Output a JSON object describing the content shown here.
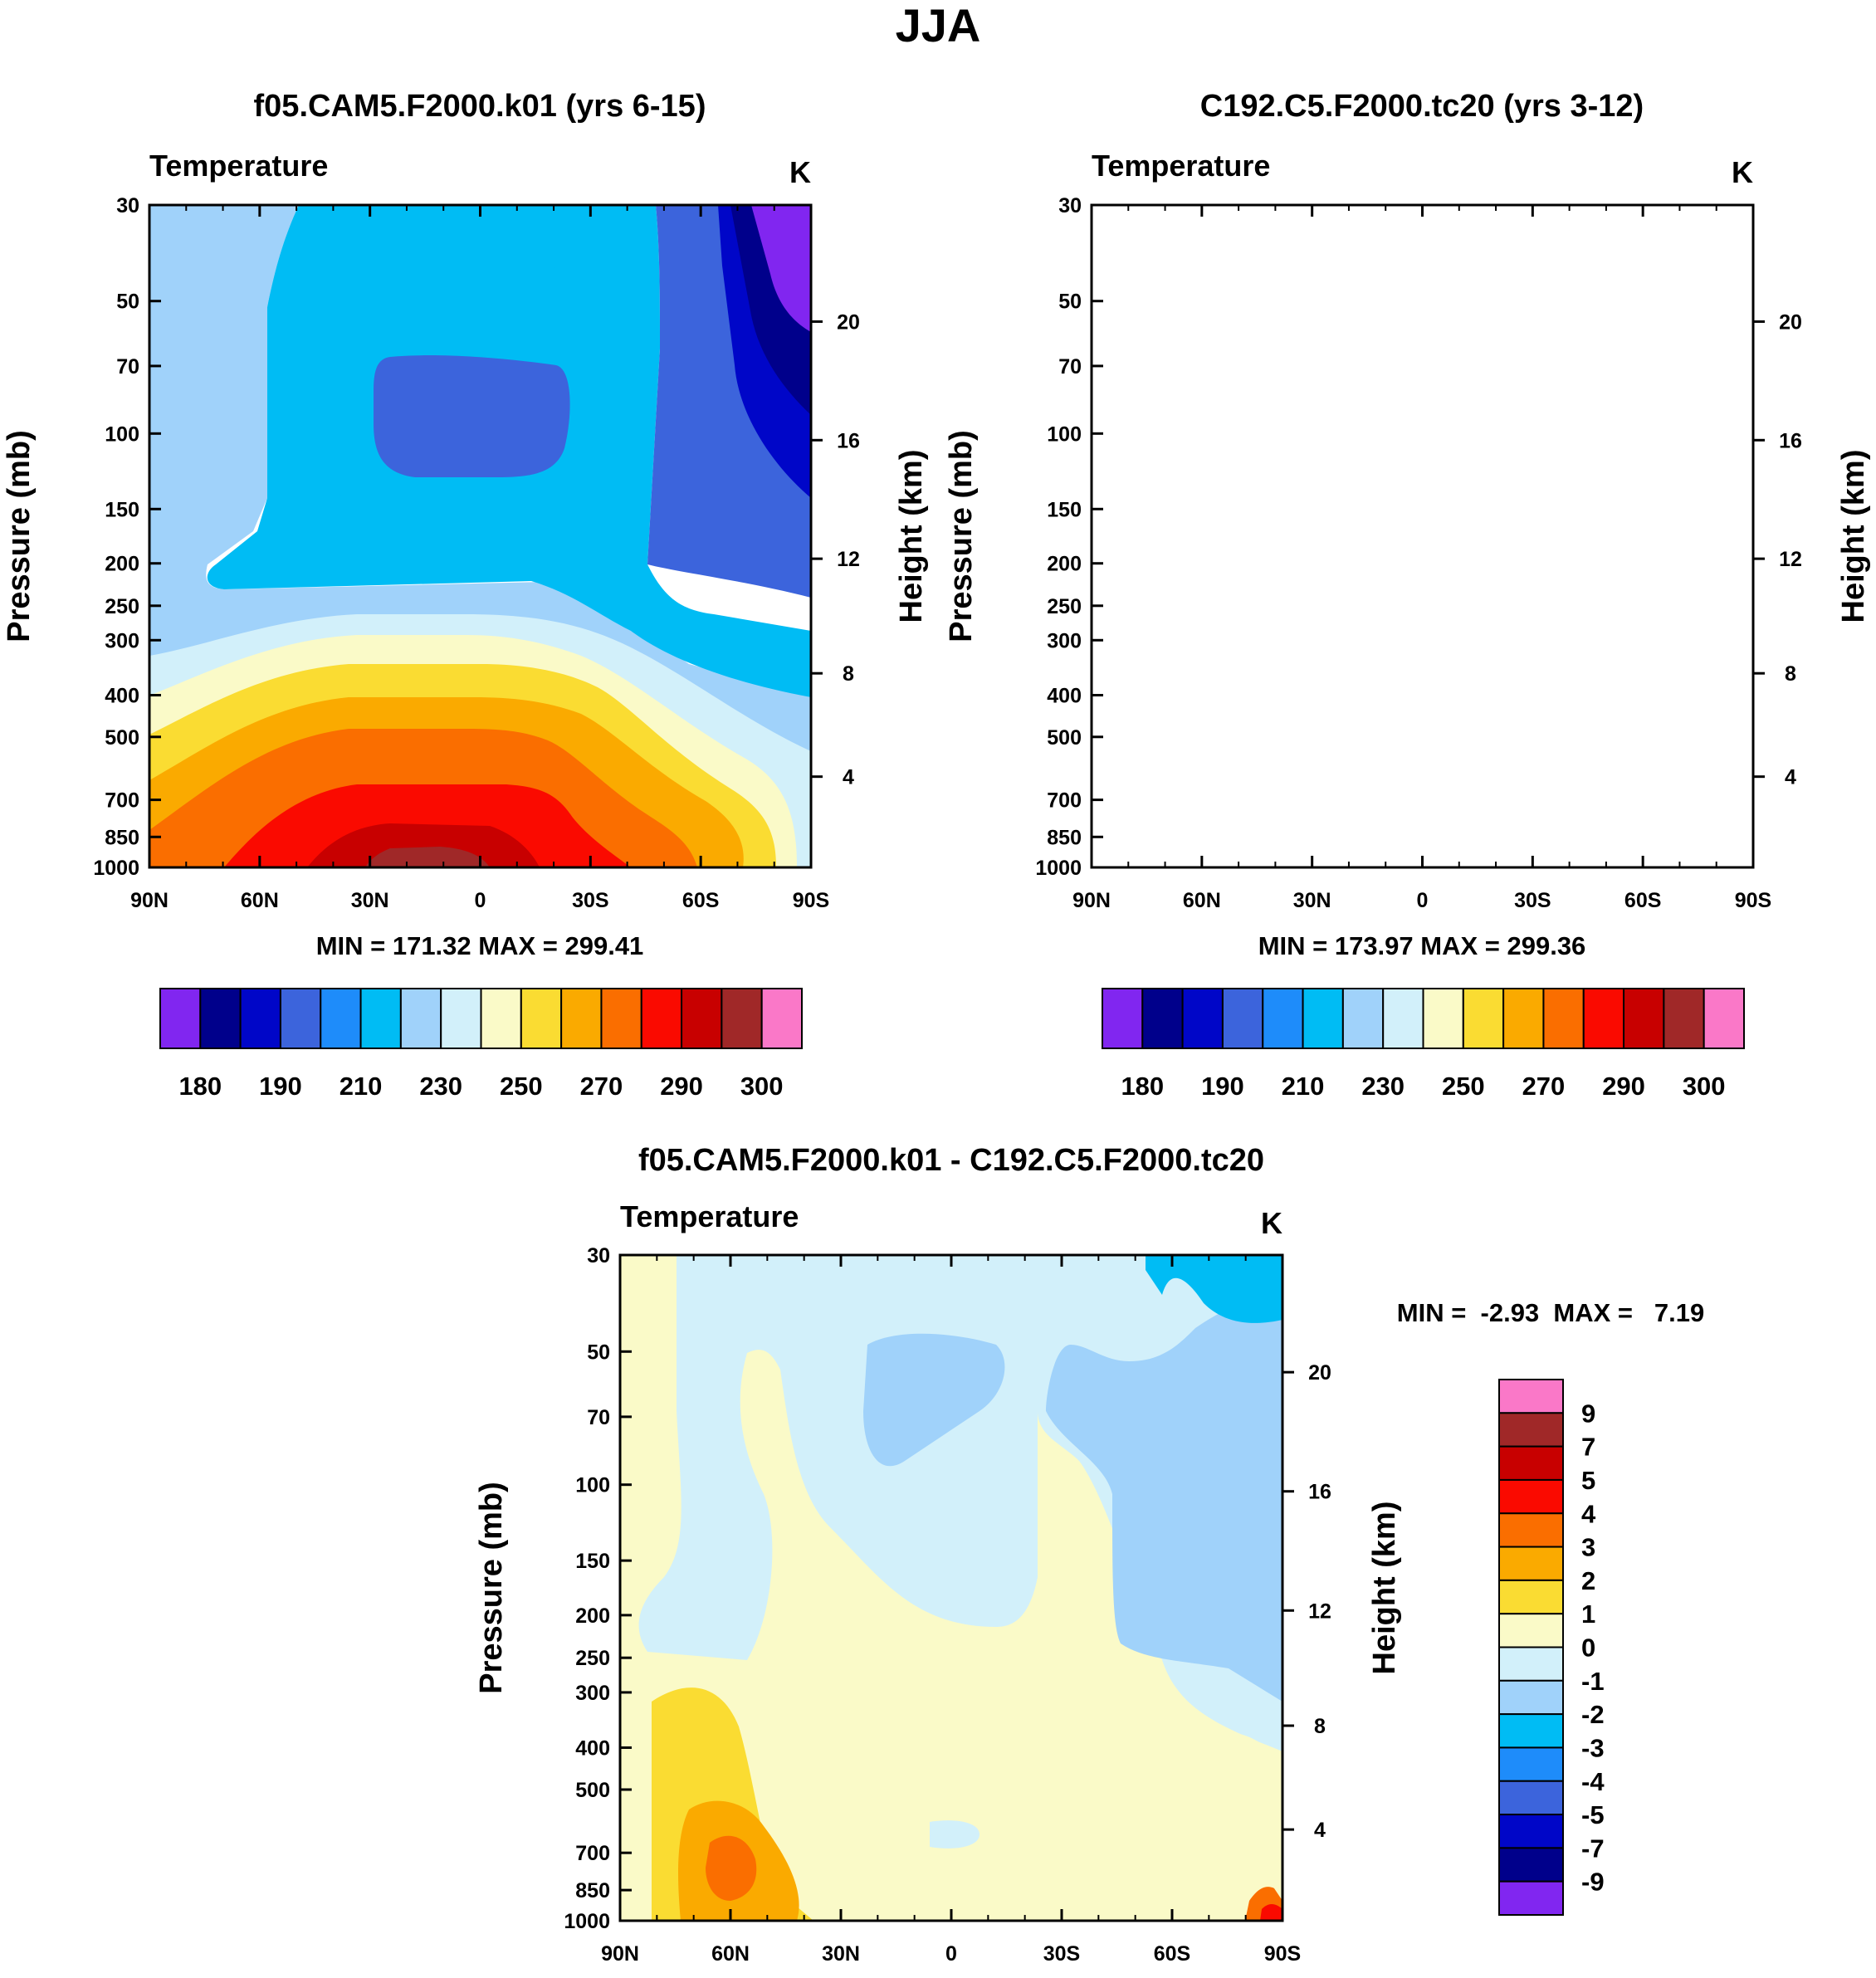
{
  "figure_title": "JJA",
  "colors": {
    "full_palette": [
      "#8126f0",
      "#00008b",
      "#0006c8",
      "#3c64dc",
      "#1e8cfa",
      "#00bcf4",
      "#a0d2fa",
      "#d2f0fa",
      "#fafac8",
      "#fadc32",
      "#faaa00",
      "#fa6e00",
      "#fa0a00",
      "#c80000",
      "#a02828",
      "#fa78c8"
    ],
    "diff_palette": [
      "#8126f0",
      "#00008b",
      "#0006c8",
      "#3c64dc",
      "#1e8cfa",
      "#00bcf4",
      "#a0d2fa",
      "#d2f0fa",
      "#fafac8",
      "#fadc32",
      "#faaa00",
      "#fa6e00",
      "#fa0a00",
      "#c80000",
      "#a02828",
      "#fa78c8"
    ]
  },
  "chart_data": [
    {
      "type": "heatmap",
      "title": "f05.CAM5.F2000.k01 (yrs 6-15)",
      "left_label": "Temperature",
      "right_label": "K",
      "xlabel": "",
      "ylabel": "Pressure (mb)",
      "y2label": "Height (km)",
      "xticks": [
        "90N",
        "60N",
        "30N",
        "0",
        "30S",
        "60S",
        "90S"
      ],
      "yticks": [
        "30",
        "50",
        "70",
        "100",
        "150",
        "200",
        "250",
        "300",
        "400",
        "500",
        "700",
        "850",
        "1000"
      ],
      "y2ticks": [
        "20",
        "16",
        "12",
        "8",
        "4"
      ],
      "min_text": "MIN = 171.32  MAX = 299.41",
      "min": 171.32,
      "max": 299.41,
      "units": "K",
      "colorbar_labels": [
        "180",
        "190",
        "210",
        "230",
        "250",
        "270",
        "290",
        "300"
      ]
    },
    {
      "type": "heatmap",
      "title": "C192.C5.F2000.tc20 (yrs 3-12)",
      "left_label": "Temperature",
      "right_label": "K",
      "xlabel": "",
      "ylabel": "Pressure (mb)",
      "y2label": "Height (km)",
      "xticks": [
        "90N",
        "60N",
        "30N",
        "0",
        "30S",
        "60S",
        "90S"
      ],
      "yticks": [
        "30",
        "50",
        "70",
        "100",
        "150",
        "200",
        "250",
        "300",
        "400",
        "500",
        "700",
        "850",
        "1000"
      ],
      "y2ticks": [
        "20",
        "16",
        "12",
        "8",
        "4"
      ],
      "min_text": "MIN = 173.97  MAX = 299.36",
      "min": 173.97,
      "max": 299.36,
      "units": "K",
      "colorbar_labels": [
        "180",
        "190",
        "210",
        "230",
        "250",
        "270",
        "290",
        "300"
      ]
    },
    {
      "type": "heatmap",
      "title": "f05.CAM5.F2000.k01 - C192.C5.F2000.tc20",
      "left_label": "Temperature",
      "right_label": "K",
      "xlabel": "",
      "ylabel": "Pressure (mb)",
      "y2label": "Height (km)",
      "xticks": [
        "90N",
        "60N",
        "30N",
        "0",
        "30S",
        "60S",
        "90S"
      ],
      "yticks": [
        "30",
        "50",
        "70",
        "100",
        "150",
        "200",
        "250",
        "300",
        "400",
        "500",
        "700",
        "850",
        "1000"
      ],
      "y2ticks": [
        "20",
        "16",
        "12",
        "8",
        "4"
      ],
      "min_text": "MIN =  -2.93  MAX =   7.19",
      "min": -2.93,
      "max": 7.19,
      "units": "K",
      "colorbar_labels": [
        "9",
        "7",
        "5",
        "4",
        "3",
        "2",
        "1",
        "0",
        "-1",
        "-2",
        "-3",
        "-4",
        "-5",
        "-7",
        "-9"
      ]
    }
  ]
}
